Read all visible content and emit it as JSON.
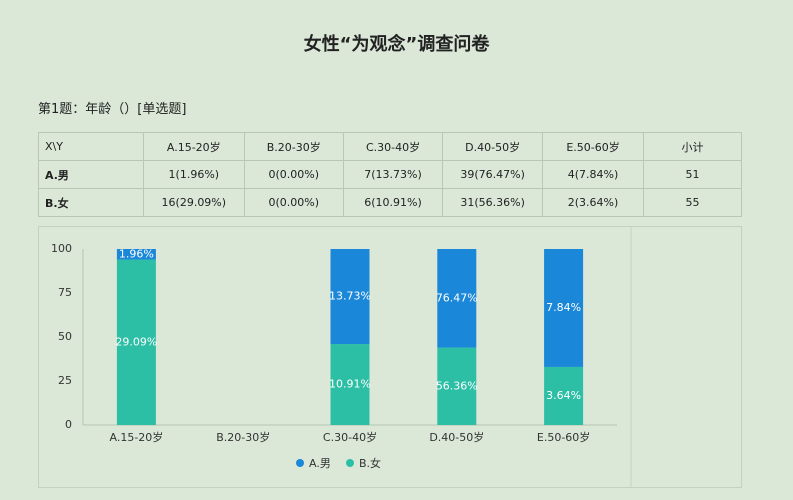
{
  "header": {
    "title": "女性“为观念”调查问卷"
  },
  "question": "第1题：年龄（）[单选题]",
  "table": {
    "columns": [
      "X\\Y",
      "A.15-20岁",
      "B.20-30岁",
      "C.30-40岁",
      "D.40-50岁",
      "E.50-60岁",
      "小计"
    ],
    "rows": [
      [
        "A.男",
        "1(1.96%)",
        "0(0.00%)",
        "7(13.73%)",
        "39(76.47%)",
        "4(7.84%)",
        "51"
      ],
      [
        "B.女",
        "16(29.09%)",
        "0(0.00%)",
        "6(10.91%)",
        "31(56.36%)",
        "2(3.64%)",
        "55"
      ]
    ]
  },
  "chart_data": {
    "type": "stacked_bar",
    "categories": [
      "A.15-20岁",
      "B.20-30岁",
      "C.30-40岁",
      "D.40-50岁",
      "E.50-60岁"
    ],
    "series": [
      {
        "name": "B.女",
        "color": "#2dbfa5",
        "values": [
          94,
          0,
          46,
          44,
          33
        ],
        "segment_labels": [
          "29.09%",
          null,
          "10.91%",
          "56.36%",
          "3.64%"
        ]
      },
      {
        "name": "A.男",
        "color": "#1a87d9",
        "values": [
          6,
          0,
          54,
          56,
          67
        ],
        "segment_labels": [
          "1.96%",
          null,
          "13.73%",
          "76.47%",
          "7.84%"
        ]
      }
    ],
    "legend_order": [
      1,
      0
    ],
    "ylim": [
      0,
      100
    ],
    "yticks": [
      0,
      25,
      50,
      75,
      100
    ],
    "grid": false
  }
}
